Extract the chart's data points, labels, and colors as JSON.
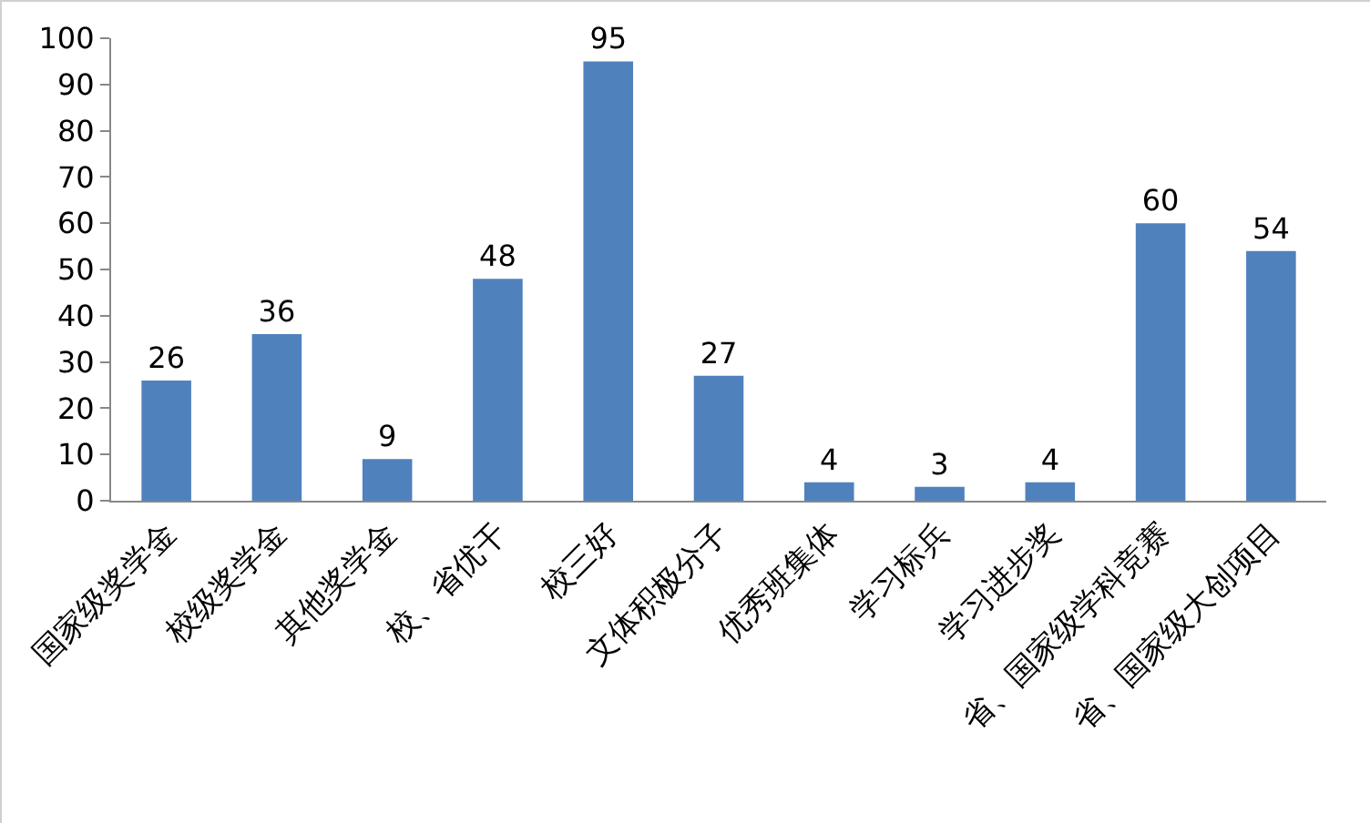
{
  "chart_data": {
    "type": "bar",
    "categories": [
      "国家级奖学金",
      "校级奖学金",
      "其他奖学金",
      "校、省优干",
      "校三好",
      "文体积极分子",
      "优秀班集体",
      "学习标兵",
      "学习进步奖",
      "省、国家级学科竞赛",
      "省、国家级大创项目"
    ],
    "values": [
      26,
      36,
      9,
      48,
      95,
      27,
      4,
      3,
      4,
      60,
      54
    ],
    "color": "#4f81bd",
    "ylim": [
      0,
      100
    ],
    "yticks": [
      0,
      10,
      20,
      30,
      40,
      50,
      60,
      70,
      80,
      90,
      100
    ],
    "grid": false,
    "data_labels": true
  }
}
